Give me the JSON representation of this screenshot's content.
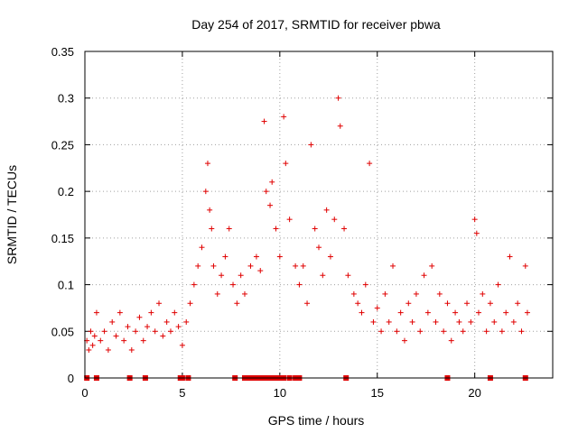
{
  "chart_data": {
    "type": "scatter",
    "title": "Day 254 of 2017, SRMTID for receiver pbwa",
    "xlabel": "GPS time / hours",
    "ylabel": "SRMTID / TECUs",
    "xlim": [
      0,
      24
    ],
    "ylim": [
      0,
      0.35
    ],
    "x_ticks": [
      0,
      5,
      10,
      15,
      20
    ],
    "x_tick_labels": [
      "0",
      "5",
      "10",
      "15",
      "20"
    ],
    "y_ticks": [
      0,
      0.05,
      0.1,
      0.15,
      0.2,
      0.25,
      0.3,
      0.35
    ],
    "y_tick_labels": [
      "0",
      "0.05",
      "0.1",
      "0.15",
      "0.2",
      "0.25",
      "0.3",
      "0.35"
    ],
    "grid": true,
    "marker": "+",
    "color": "#e00000",
    "series": [
      {
        "name": "SRMTID",
        "points": [
          [
            0.1,
            0.04
          ],
          [
            0.2,
            0.03
          ],
          [
            0.3,
            0.05
          ],
          [
            0.4,
            0.035
          ],
          [
            0.5,
            0.045
          ],
          [
            0.6,
            0.07
          ],
          [
            0.8,
            0.04
          ],
          [
            1.0,
            0.05
          ],
          [
            1.2,
            0.03
          ],
          [
            1.4,
            0.06
          ],
          [
            1.6,
            0.045
          ],
          [
            1.8,
            0.07
          ],
          [
            2.0,
            0.04
          ],
          [
            2.2,
            0.055
          ],
          [
            2.4,
            0.03
          ],
          [
            2.6,
            0.05
          ],
          [
            2.8,
            0.065
          ],
          [
            3.0,
            0.04
          ],
          [
            3.2,
            0.055
          ],
          [
            3.4,
            0.07
          ],
          [
            3.6,
            0.05
          ],
          [
            3.8,
            0.08
          ],
          [
            4.0,
            0.045
          ],
          [
            4.2,
            0.06
          ],
          [
            4.4,
            0.05
          ],
          [
            4.6,
            0.07
          ],
          [
            4.8,
            0.055
          ],
          [
            5.0,
            0.035
          ],
          [
            5.2,
            0.06
          ],
          [
            5.4,
            0.08
          ],
          [
            5.6,
            0.1
          ],
          [
            5.8,
            0.12
          ],
          [
            6.0,
            0.14
          ],
          [
            6.2,
            0.2
          ],
          [
            6.3,
            0.23
          ],
          [
            6.4,
            0.18
          ],
          [
            6.5,
            0.16
          ],
          [
            6.6,
            0.12
          ],
          [
            6.8,
            0.09
          ],
          [
            7.0,
            0.11
          ],
          [
            7.2,
            0.13
          ],
          [
            7.4,
            0.16
          ],
          [
            7.6,
            0.1
          ],
          [
            7.8,
            0.08
          ],
          [
            8.0,
            0.11
          ],
          [
            8.2,
            0.09
          ],
          [
            8.5,
            0.12
          ],
          [
            8.8,
            0.13
          ],
          [
            9.0,
            0.115
          ],
          [
            9.2,
            0.275
          ],
          [
            9.3,
            0.2
          ],
          [
            9.5,
            0.185
          ],
          [
            9.6,
            0.21
          ],
          [
            9.8,
            0.16
          ],
          [
            10.0,
            0.13
          ],
          [
            10.2,
            0.28
          ],
          [
            10.3,
            0.23
          ],
          [
            10.5,
            0.17
          ],
          [
            10.8,
            0.12
          ],
          [
            11.0,
            0.1
          ],
          [
            11.2,
            0.12
          ],
          [
            11.4,
            0.08
          ],
          [
            11.6,
            0.25
          ],
          [
            11.8,
            0.16
          ],
          [
            12.0,
            0.14
          ],
          [
            12.2,
            0.11
          ],
          [
            12.4,
            0.18
          ],
          [
            12.6,
            0.13
          ],
          [
            12.8,
            0.17
          ],
          [
            13.0,
            0.3
          ],
          [
            13.1,
            0.27
          ],
          [
            13.3,
            0.16
          ],
          [
            13.5,
            0.11
          ],
          [
            13.8,
            0.09
          ],
          [
            14.0,
            0.08
          ],
          [
            14.2,
            0.07
          ],
          [
            14.4,
            0.1
          ],
          [
            14.6,
            0.23
          ],
          [
            14.8,
            0.06
          ],
          [
            15.0,
            0.075
          ],
          [
            15.2,
            0.05
          ],
          [
            15.4,
            0.09
          ],
          [
            15.6,
            0.06
          ],
          [
            15.8,
            0.12
          ],
          [
            16.0,
            0.05
          ],
          [
            16.2,
            0.07
          ],
          [
            16.4,
            0.04
          ],
          [
            16.6,
            0.08
          ],
          [
            16.8,
            0.06
          ],
          [
            17.0,
            0.09
          ],
          [
            17.2,
            0.05
          ],
          [
            17.4,
            0.11
          ],
          [
            17.6,
            0.07
          ],
          [
            17.8,
            0.12
          ],
          [
            18.0,
            0.06
          ],
          [
            18.2,
            0.09
          ],
          [
            18.4,
            0.05
          ],
          [
            18.6,
            0.08
          ],
          [
            18.8,
            0.04
          ],
          [
            19.0,
            0.07
          ],
          [
            19.2,
            0.06
          ],
          [
            19.4,
            0.05
          ],
          [
            19.6,
            0.08
          ],
          [
            19.8,
            0.06
          ],
          [
            20.0,
            0.17
          ],
          [
            20.1,
            0.155
          ],
          [
            20.2,
            0.07
          ],
          [
            20.4,
            0.09
          ],
          [
            20.6,
            0.05
          ],
          [
            20.8,
            0.08
          ],
          [
            21.0,
            0.06
          ],
          [
            21.2,
            0.1
          ],
          [
            21.4,
            0.05
          ],
          [
            21.6,
            0.07
          ],
          [
            21.8,
            0.13
          ],
          [
            22.0,
            0.06
          ],
          [
            22.2,
            0.08
          ],
          [
            22.4,
            0.05
          ],
          [
            22.6,
            0.12
          ],
          [
            22.7,
            0.07
          ]
        ]
      }
    ],
    "zero_markers_x": [
      0.1,
      0.6,
      2.3,
      3.1,
      4.9,
      5.0,
      5.3,
      7.7,
      8.2,
      8.4,
      8.6,
      8.8,
      9.0,
      9.2,
      9.4,
      9.6,
      9.8,
      10.0,
      10.2,
      10.5,
      10.8,
      11.0,
      13.4,
      18.6,
      20.8,
      22.6
    ]
  }
}
